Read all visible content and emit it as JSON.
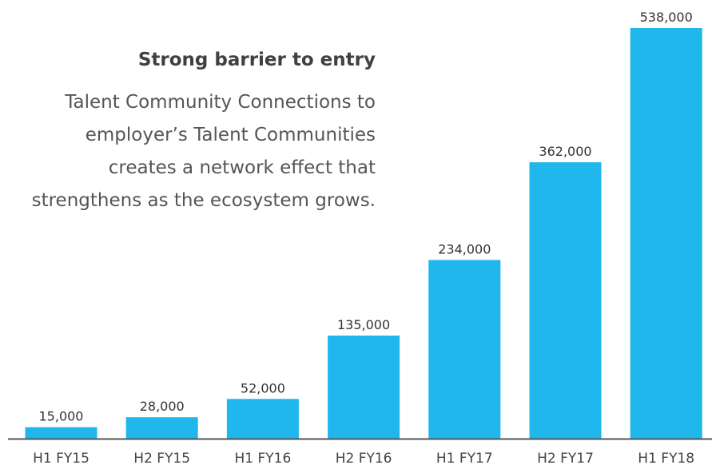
{
  "callout": {
    "title": "Strong barrier to entry",
    "lines": [
      "Talent Community Connections to",
      "employer’s Talent Communities",
      "creates a network effect that",
      "strengthens as the ecosystem grows."
    ]
  },
  "chart_data": {
    "type": "bar",
    "categories": [
      "H1 FY15",
      "H2 FY15",
      "H1 FY16",
      "H2 FY16",
      "H1 FY17",
      "H2 FY17",
      "H1 FY18"
    ],
    "values": [
      15000,
      28000,
      52000,
      135000,
      234000,
      362000,
      538000
    ],
    "value_labels": [
      "15,000",
      "28,000",
      "52,000",
      "135,000",
      "234,000",
      "362,000",
      "538,000"
    ],
    "title": "",
    "xlabel": "",
    "ylabel": "",
    "ylim": [
      0,
      538000
    ],
    "grid": false,
    "legend": "none",
    "bar_color": "#1fb7ec",
    "axis_color": "#555555"
  }
}
